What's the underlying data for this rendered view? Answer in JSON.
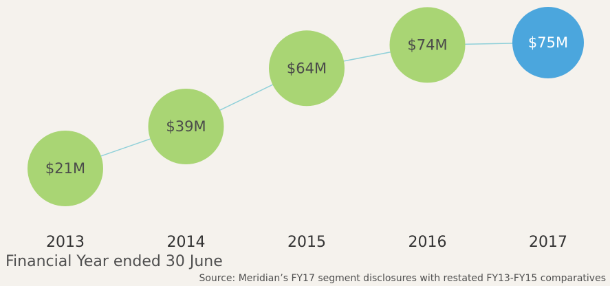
{
  "chart_data": {
    "type": "line",
    "categories": [
      "2013",
      "2014",
      "2015",
      "2016",
      "2017"
    ],
    "values": [
      21,
      39,
      64,
      74,
      75
    ],
    "value_labels": [
      "$21M",
      "$39M",
      "$64M",
      "$74M",
      "$75M"
    ],
    "colors": [
      "#a9d574",
      "#a9d574",
      "#a9d574",
      "#a9d574",
      "#4ba6dd"
    ],
    "line_color": "#8fd0d9",
    "xlabel": "Financial Year ended 30 June",
    "source": "Source: Meridian’s FY17 segment disclosures with restated FY13-FY15 comparatives"
  }
}
